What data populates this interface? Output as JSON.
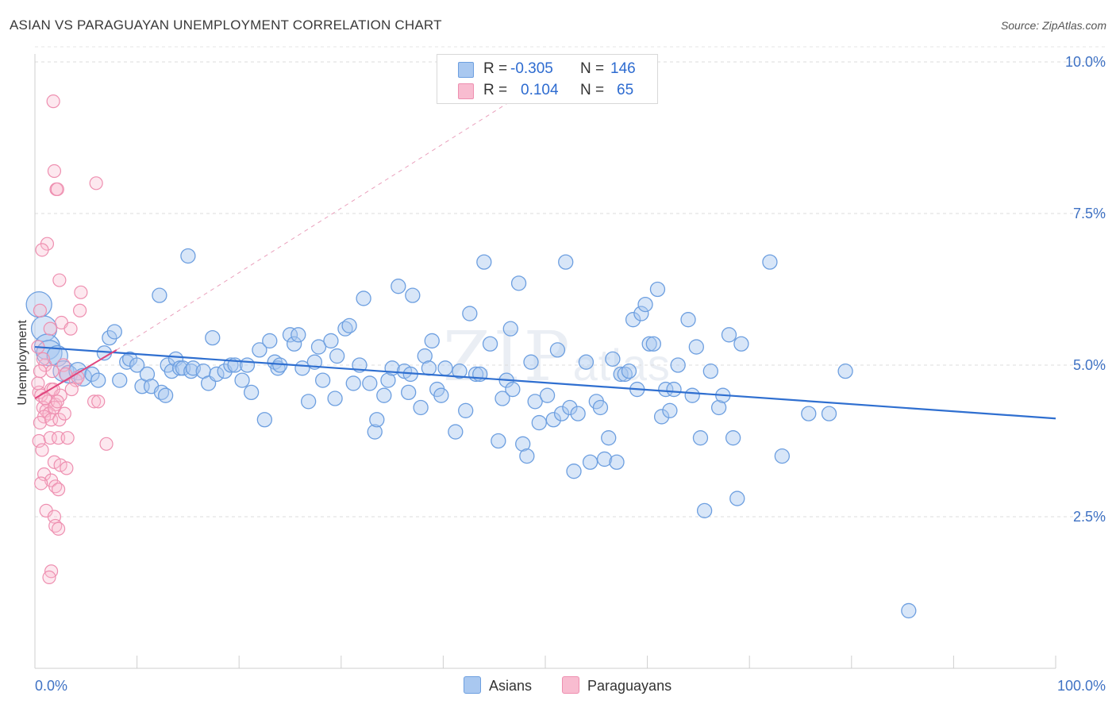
{
  "header": {
    "title": "ASIAN VS PARAGUAYAN UNEMPLOYMENT CORRELATION CHART",
    "source": "Source: ZipAtlas.com"
  },
  "watermark": {
    "zip": "ZIP",
    "atlas": "atlas"
  },
  "legend": {
    "rows": [
      {
        "r_label": "R =",
        "r_value": "-0.305",
        "n_label": "N =",
        "n_value": "146",
        "color": "#a9c8f0",
        "border": "#6d9fe0"
      },
      {
        "r_label": "R =",
        "r_value": "0.104",
        "n_label": "N =",
        "n_value": "65",
        "color": "#f8bcd0",
        "border": "#ee8fb0"
      }
    ]
  },
  "bottom_legend": {
    "asians": "Asians",
    "paraguayans": "Paraguayans"
  },
  "chart_data": {
    "type": "scatter",
    "title": "ASIAN VS PARAGUAYAN UNEMPLOYMENT CORRELATION CHART",
    "xlabel": "",
    "ylabel": "Unemployment",
    "xlim": [
      0,
      100
    ],
    "ylim": [
      0,
      10
    ],
    "x_tick_labels": [
      "0.0%",
      "100.0%"
    ],
    "y_ticks": [
      2.5,
      5.0,
      7.5,
      10.0
    ],
    "y_tick_labels": [
      "2.5%",
      "5.0%",
      "7.5%",
      "10.0%"
    ],
    "grid": true,
    "legend_position": "top-center",
    "series": [
      {
        "name": "Asians",
        "color": "#6d9fe0",
        "fill": "#a9c8f0",
        "trend": {
          "x": [
            0,
            100
          ],
          "y": [
            5.3,
            4.12
          ]
        },
        "points": [
          [
            0.4,
            6.0
          ],
          [
            0.9,
            5.6
          ],
          [
            1.2,
            5.3
          ],
          [
            1.4,
            5.2
          ],
          [
            2.2,
            5.15
          ],
          [
            2.8,
            4.9
          ],
          [
            3.3,
            4.85
          ],
          [
            4.2,
            4.9
          ],
          [
            4.7,
            4.8
          ],
          [
            5.6,
            4.85
          ],
          [
            6.2,
            4.75
          ],
          [
            6.8,
            5.2
          ],
          [
            7.3,
            5.45
          ],
          [
            7.8,
            5.55
          ],
          [
            8.3,
            4.75
          ],
          [
            9.0,
            5.05
          ],
          [
            9.3,
            5.1
          ],
          [
            10.0,
            5.0
          ],
          [
            10.5,
            4.65
          ],
          [
            11.0,
            4.85
          ],
          [
            11.4,
            4.65
          ],
          [
            12.2,
            6.15
          ],
          [
            12.4,
            4.55
          ],
          [
            12.8,
            4.5
          ],
          [
            13.0,
            5.0
          ],
          [
            13.4,
            4.9
          ],
          [
            13.8,
            5.1
          ],
          [
            14.2,
            4.95
          ],
          [
            14.5,
            4.95
          ],
          [
            15.0,
            6.8
          ],
          [
            15.3,
            4.9
          ],
          [
            15.5,
            4.95
          ],
          [
            16.5,
            4.9
          ],
          [
            17.0,
            4.7
          ],
          [
            17.4,
            5.45
          ],
          [
            17.8,
            4.85
          ],
          [
            18.6,
            4.9
          ],
          [
            19.2,
            5.0
          ],
          [
            19.6,
            5.0
          ],
          [
            20.3,
            4.75
          ],
          [
            20.8,
            5.0
          ],
          [
            21.2,
            4.55
          ],
          [
            22.0,
            5.25
          ],
          [
            22.5,
            4.1
          ],
          [
            23.0,
            5.4
          ],
          [
            23.5,
            5.05
          ],
          [
            23.8,
            4.95
          ],
          [
            24.0,
            5.0
          ],
          [
            25.0,
            5.5
          ],
          [
            25.4,
            5.35
          ],
          [
            25.8,
            5.5
          ],
          [
            26.2,
            4.95
          ],
          [
            26.8,
            4.4
          ],
          [
            27.4,
            5.05
          ],
          [
            27.8,
            5.3
          ],
          [
            28.2,
            4.75
          ],
          [
            29.0,
            5.4
          ],
          [
            29.4,
            4.45
          ],
          [
            29.6,
            5.15
          ],
          [
            30.4,
            5.6
          ],
          [
            30.8,
            5.65
          ],
          [
            31.2,
            4.7
          ],
          [
            31.8,
            5.0
          ],
          [
            32.2,
            6.1
          ],
          [
            32.8,
            4.7
          ],
          [
            33.3,
            3.9
          ],
          [
            33.5,
            4.1
          ],
          [
            34.2,
            4.5
          ],
          [
            34.6,
            4.75
          ],
          [
            35.0,
            4.95
          ],
          [
            35.6,
            6.3
          ],
          [
            36.2,
            4.9
          ],
          [
            36.6,
            4.55
          ],
          [
            37.0,
            6.15
          ],
          [
            37.8,
            4.3
          ],
          [
            38.2,
            5.15
          ],
          [
            38.6,
            4.95
          ],
          [
            38.9,
            5.4
          ],
          [
            39.4,
            4.6
          ],
          [
            39.8,
            4.5
          ],
          [
            40.2,
            4.95
          ],
          [
            41.2,
            3.9
          ],
          [
            41.6,
            4.9
          ],
          [
            42.2,
            4.25
          ],
          [
            42.6,
            5.85
          ],
          [
            43.2,
            4.85
          ],
          [
            43.6,
            4.85
          ],
          [
            44.0,
            6.7
          ],
          [
            44.6,
            5.35
          ],
          [
            45.4,
            3.75
          ],
          [
            45.8,
            4.45
          ],
          [
            46.2,
            4.75
          ],
          [
            46.6,
            5.6
          ],
          [
            47.4,
            6.35
          ],
          [
            47.8,
            3.7
          ],
          [
            48.2,
            3.5
          ],
          [
            48.6,
            5.05
          ],
          [
            49.0,
            4.4
          ],
          [
            49.4,
            4.05
          ],
          [
            50.2,
            4.5
          ],
          [
            50.8,
            4.1
          ],
          [
            51.2,
            5.25
          ],
          [
            51.6,
            4.2
          ],
          [
            52.0,
            6.7
          ],
          [
            52.4,
            4.3
          ],
          [
            52.8,
            3.25
          ],
          [
            53.2,
            4.2
          ],
          [
            54.0,
            5.05
          ],
          [
            54.4,
            3.4
          ],
          [
            55.0,
            4.4
          ],
          [
            55.4,
            4.3
          ],
          [
            55.8,
            3.45
          ],
          [
            56.2,
            3.8
          ],
          [
            56.6,
            5.1
          ],
          [
            57.0,
            3.4
          ],
          [
            57.4,
            4.85
          ],
          [
            57.8,
            4.85
          ],
          [
            58.2,
            4.9
          ],
          [
            58.6,
            5.75
          ],
          [
            59.0,
            4.6
          ],
          [
            59.4,
            5.85
          ],
          [
            59.8,
            6.0
          ],
          [
            60.2,
            5.35
          ],
          [
            60.6,
            5.35
          ],
          [
            61.0,
            6.25
          ],
          [
            61.4,
            4.15
          ],
          [
            61.8,
            4.6
          ],
          [
            62.2,
            4.25
          ],
          [
            62.6,
            4.6
          ],
          [
            63.0,
            5.0
          ],
          [
            64.0,
            5.75
          ],
          [
            64.4,
            4.5
          ],
          [
            64.8,
            5.3
          ],
          [
            65.2,
            3.8
          ],
          [
            65.6,
            2.6
          ],
          [
            66.2,
            4.9
          ],
          [
            67.0,
            4.3
          ],
          [
            67.4,
            4.5
          ],
          [
            68.0,
            5.5
          ],
          [
            68.4,
            3.8
          ],
          [
            68.8,
            2.8
          ],
          [
            69.2,
            5.35
          ],
          [
            72.0,
            6.7
          ],
          [
            73.2,
            3.5
          ],
          [
            75.8,
            4.2
          ],
          [
            77.8,
            4.2
          ],
          [
            79.4,
            4.9
          ],
          [
            85.6,
            0.95
          ],
          [
            46.8,
            4.6
          ],
          [
            36.8,
            4.85
          ]
        ],
        "sizes": "large cluster near x=0-5"
      },
      {
        "name": "Paraguayans",
        "color": "#ee8fb0",
        "fill": "#f8bcd0",
        "trend": {
          "x": [
            0,
            8
          ],
          "y": [
            4.45,
            5.25
          ],
          "dashed_extension": {
            "x": [
              8,
              48
            ],
            "y": [
              5.25,
              9.5
            ]
          }
        },
        "points": [
          [
            1.8,
            9.35
          ],
          [
            1.9,
            8.2
          ],
          [
            2.1,
            7.9
          ],
          [
            2.2,
            7.9
          ],
          [
            6.0,
            8.0
          ],
          [
            1.2,
            7.0
          ],
          [
            0.7,
            6.9
          ],
          [
            2.4,
            6.4
          ],
          [
            4.5,
            6.2
          ],
          [
            0.5,
            5.9
          ],
          [
            4.4,
            5.9
          ],
          [
            1.5,
            5.6
          ],
          [
            2.6,
            5.7
          ],
          [
            3.5,
            5.6
          ],
          [
            0.3,
            5.3
          ],
          [
            1.0,
            5.0
          ],
          [
            1.7,
            4.9
          ],
          [
            2.8,
            5.0
          ],
          [
            3.0,
            4.85
          ],
          [
            4.0,
            4.75
          ],
          [
            0.4,
            4.55
          ],
          [
            0.6,
            4.5
          ],
          [
            1.3,
            4.4
          ],
          [
            1.6,
            4.6
          ],
          [
            2.0,
            4.35
          ],
          [
            2.5,
            4.5
          ],
          [
            0.8,
            4.3
          ],
          [
            1.1,
            4.25
          ],
          [
            1.4,
            4.2
          ],
          [
            1.9,
            4.3
          ],
          [
            0.9,
            4.15
          ],
          [
            0.5,
            4.05
          ],
          [
            1.6,
            4.1
          ],
          [
            2.4,
            4.1
          ],
          [
            5.8,
            4.4
          ],
          [
            6.2,
            4.4
          ],
          [
            0.4,
            3.75
          ],
          [
            1.5,
            3.8
          ],
          [
            2.3,
            3.8
          ],
          [
            3.2,
            3.8
          ],
          [
            7.0,
            3.7
          ],
          [
            0.7,
            3.6
          ],
          [
            1.9,
            3.4
          ],
          [
            2.5,
            3.35
          ],
          [
            3.1,
            3.3
          ],
          [
            0.9,
            3.2
          ],
          [
            1.6,
            3.1
          ],
          [
            0.6,
            3.05
          ],
          [
            2.0,
            3.0
          ],
          [
            2.3,
            2.95
          ],
          [
            1.1,
            2.6
          ],
          [
            1.9,
            2.5
          ],
          [
            2.0,
            2.35
          ],
          [
            2.3,
            2.3
          ],
          [
            1.6,
            1.6
          ],
          [
            1.4,
            1.5
          ],
          [
            0.3,
            4.7
          ],
          [
            0.5,
            4.9
          ],
          [
            0.8,
            5.1
          ],
          [
            2.9,
            4.2
          ],
          [
            3.6,
            4.6
          ],
          [
            4.2,
            4.8
          ],
          [
            1.0,
            4.45
          ],
          [
            1.8,
            4.6
          ],
          [
            2.2,
            4.4
          ]
        ]
      }
    ]
  }
}
